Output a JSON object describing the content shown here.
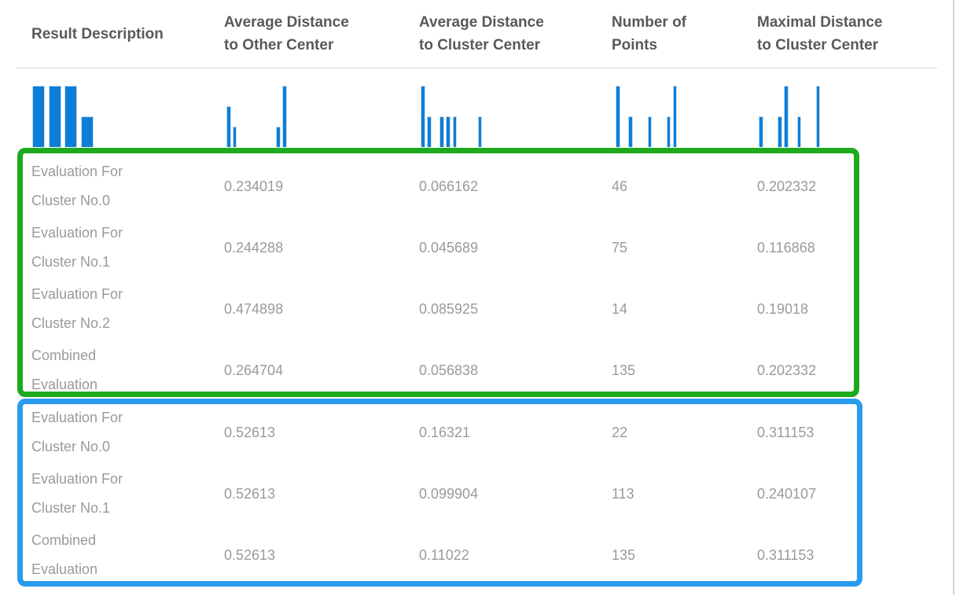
{
  "colors": {
    "background": "#ffffff",
    "header_text": "#595959",
    "body_text": "#9a9a9a",
    "divider": "#d9d9d9",
    "panel_border": "#d5d5d5",
    "bar_fill": "#0d7ed8",
    "bar_border": "#c3dcf0",
    "green_box": "#1eaa1e",
    "blue_box": "#2a9bed"
  },
  "table": {
    "columns": [
      {
        "id": "description",
        "label": "Result Description"
      },
      {
        "id": "avg_distance_other_center",
        "label": "Average Distance to Other Center"
      },
      {
        "id": "avg_distance_cluster_center",
        "label": "Average Distance to Cluster Center"
      },
      {
        "id": "number_of_points",
        "label": "Number of Points"
      },
      {
        "id": "max_distance_cluster_center",
        "label": "Maximal Distance to Cluster Center"
      }
    ],
    "groups": [
      {
        "annotation": "green-box",
        "rows": [
          {
            "description": "Evaluation For Cluster No.0",
            "avg_distance_other_center": "0.234019",
            "avg_distance_cluster_center": "0.066162",
            "number_of_points": "46",
            "max_distance_cluster_center": "0.202332"
          },
          {
            "description": "Evaluation For Cluster No.1",
            "avg_distance_other_center": "0.244288",
            "avg_distance_cluster_center": "0.045689",
            "number_of_points": "75",
            "max_distance_cluster_center": "0.116868"
          },
          {
            "description": "Evaluation For Cluster No.2",
            "avg_distance_other_center": "0.474898",
            "avg_distance_cluster_center": "0.085925",
            "number_of_points": "14",
            "max_distance_cluster_center": "0.19018"
          },
          {
            "description": "Combined Evaluation",
            "avg_distance_other_center": "0.264704",
            "avg_distance_cluster_center": "0.056838",
            "number_of_points": "135",
            "max_distance_cluster_center": "0.202332"
          }
        ]
      },
      {
        "annotation": "blue-box",
        "rows": [
          {
            "description": "Evaluation For Cluster No.0",
            "avg_distance_other_center": "0.52613",
            "avg_distance_cluster_center": "0.16321",
            "number_of_points": "22",
            "max_distance_cluster_center": "0.311153"
          },
          {
            "description": "Evaluation For Cluster No.1",
            "avg_distance_other_center": "0.52613",
            "avg_distance_cluster_center": "0.099904",
            "number_of_points": "113",
            "max_distance_cluster_center": "0.240107"
          },
          {
            "description": "Combined Evaluation",
            "avg_distance_other_center": "0.52613",
            "avg_distance_cluster_center": "0.11022",
            "number_of_points": "135",
            "max_distance_cluster_center": "0.311153"
          }
        ]
      }
    ]
  },
  "chart_data": [
    {
      "type": "bar",
      "column": "Result Description",
      "kind": "category-histogram",
      "categories": [
        "Combined Evaluation",
        "Evaluation For Cluster No.0",
        "Evaluation For Cluster No.1",
        "Evaluation For Cluster No.2"
      ],
      "values": [
        2,
        2,
        2,
        1
      ],
      "n_slots": 4,
      "max_count": 2,
      "bars": [
        {
          "slot": 0,
          "count": 2
        },
        {
          "slot": 1,
          "count": 2
        },
        {
          "slot": 2,
          "count": 2
        },
        {
          "slot": 3,
          "count": 1
        }
      ]
    },
    {
      "type": "bar",
      "column": "Average Distance to Other Center",
      "kind": "value-histogram",
      "value_range": [
        0.234019,
        0.52613
      ],
      "n_slots": 10,
      "max_count": 3,
      "bars": [
        {
          "slot": 0,
          "count": 2
        },
        {
          "slot": 1,
          "count": 1
        },
        {
          "slot": 8,
          "count": 1
        },
        {
          "slot": 9,
          "count": 3
        }
      ]
    },
    {
      "type": "bar",
      "column": "Average Distance to Cluster Center",
      "kind": "value-histogram",
      "value_range": [
        0.045689,
        0.16321
      ],
      "n_slots": 10,
      "max_count": 2,
      "bars": [
        {
          "slot": 0,
          "count": 2
        },
        {
          "slot": 1,
          "count": 1
        },
        {
          "slot": 3,
          "count": 1
        },
        {
          "slot": 4,
          "count": 1
        },
        {
          "slot": 5,
          "count": 1
        },
        {
          "slot": 9,
          "count": 1
        }
      ]
    },
    {
      "type": "bar",
      "column": "Number of Points",
      "kind": "value-histogram",
      "value_range": [
        14,
        135
      ],
      "n_slots": 10,
      "max_count": 2,
      "bars": [
        {
          "slot": 0,
          "count": 2
        },
        {
          "slot": 2,
          "count": 1
        },
        {
          "slot": 5,
          "count": 1
        },
        {
          "slot": 8,
          "count": 1
        },
        {
          "slot": 9,
          "count": 2
        }
      ]
    },
    {
      "type": "bar",
      "column": "Maximal Distance to Cluster Center",
      "kind": "value-histogram",
      "value_range": [
        0.116868,
        0.311153
      ],
      "n_slots": 10,
      "max_count": 2,
      "bars": [
        {
          "slot": 0,
          "count": 1
        },
        {
          "slot": 3,
          "count": 1
        },
        {
          "slot": 4,
          "count": 2
        },
        {
          "slot": 6,
          "count": 1
        },
        {
          "slot": 9,
          "count": 2
        }
      ]
    }
  ]
}
